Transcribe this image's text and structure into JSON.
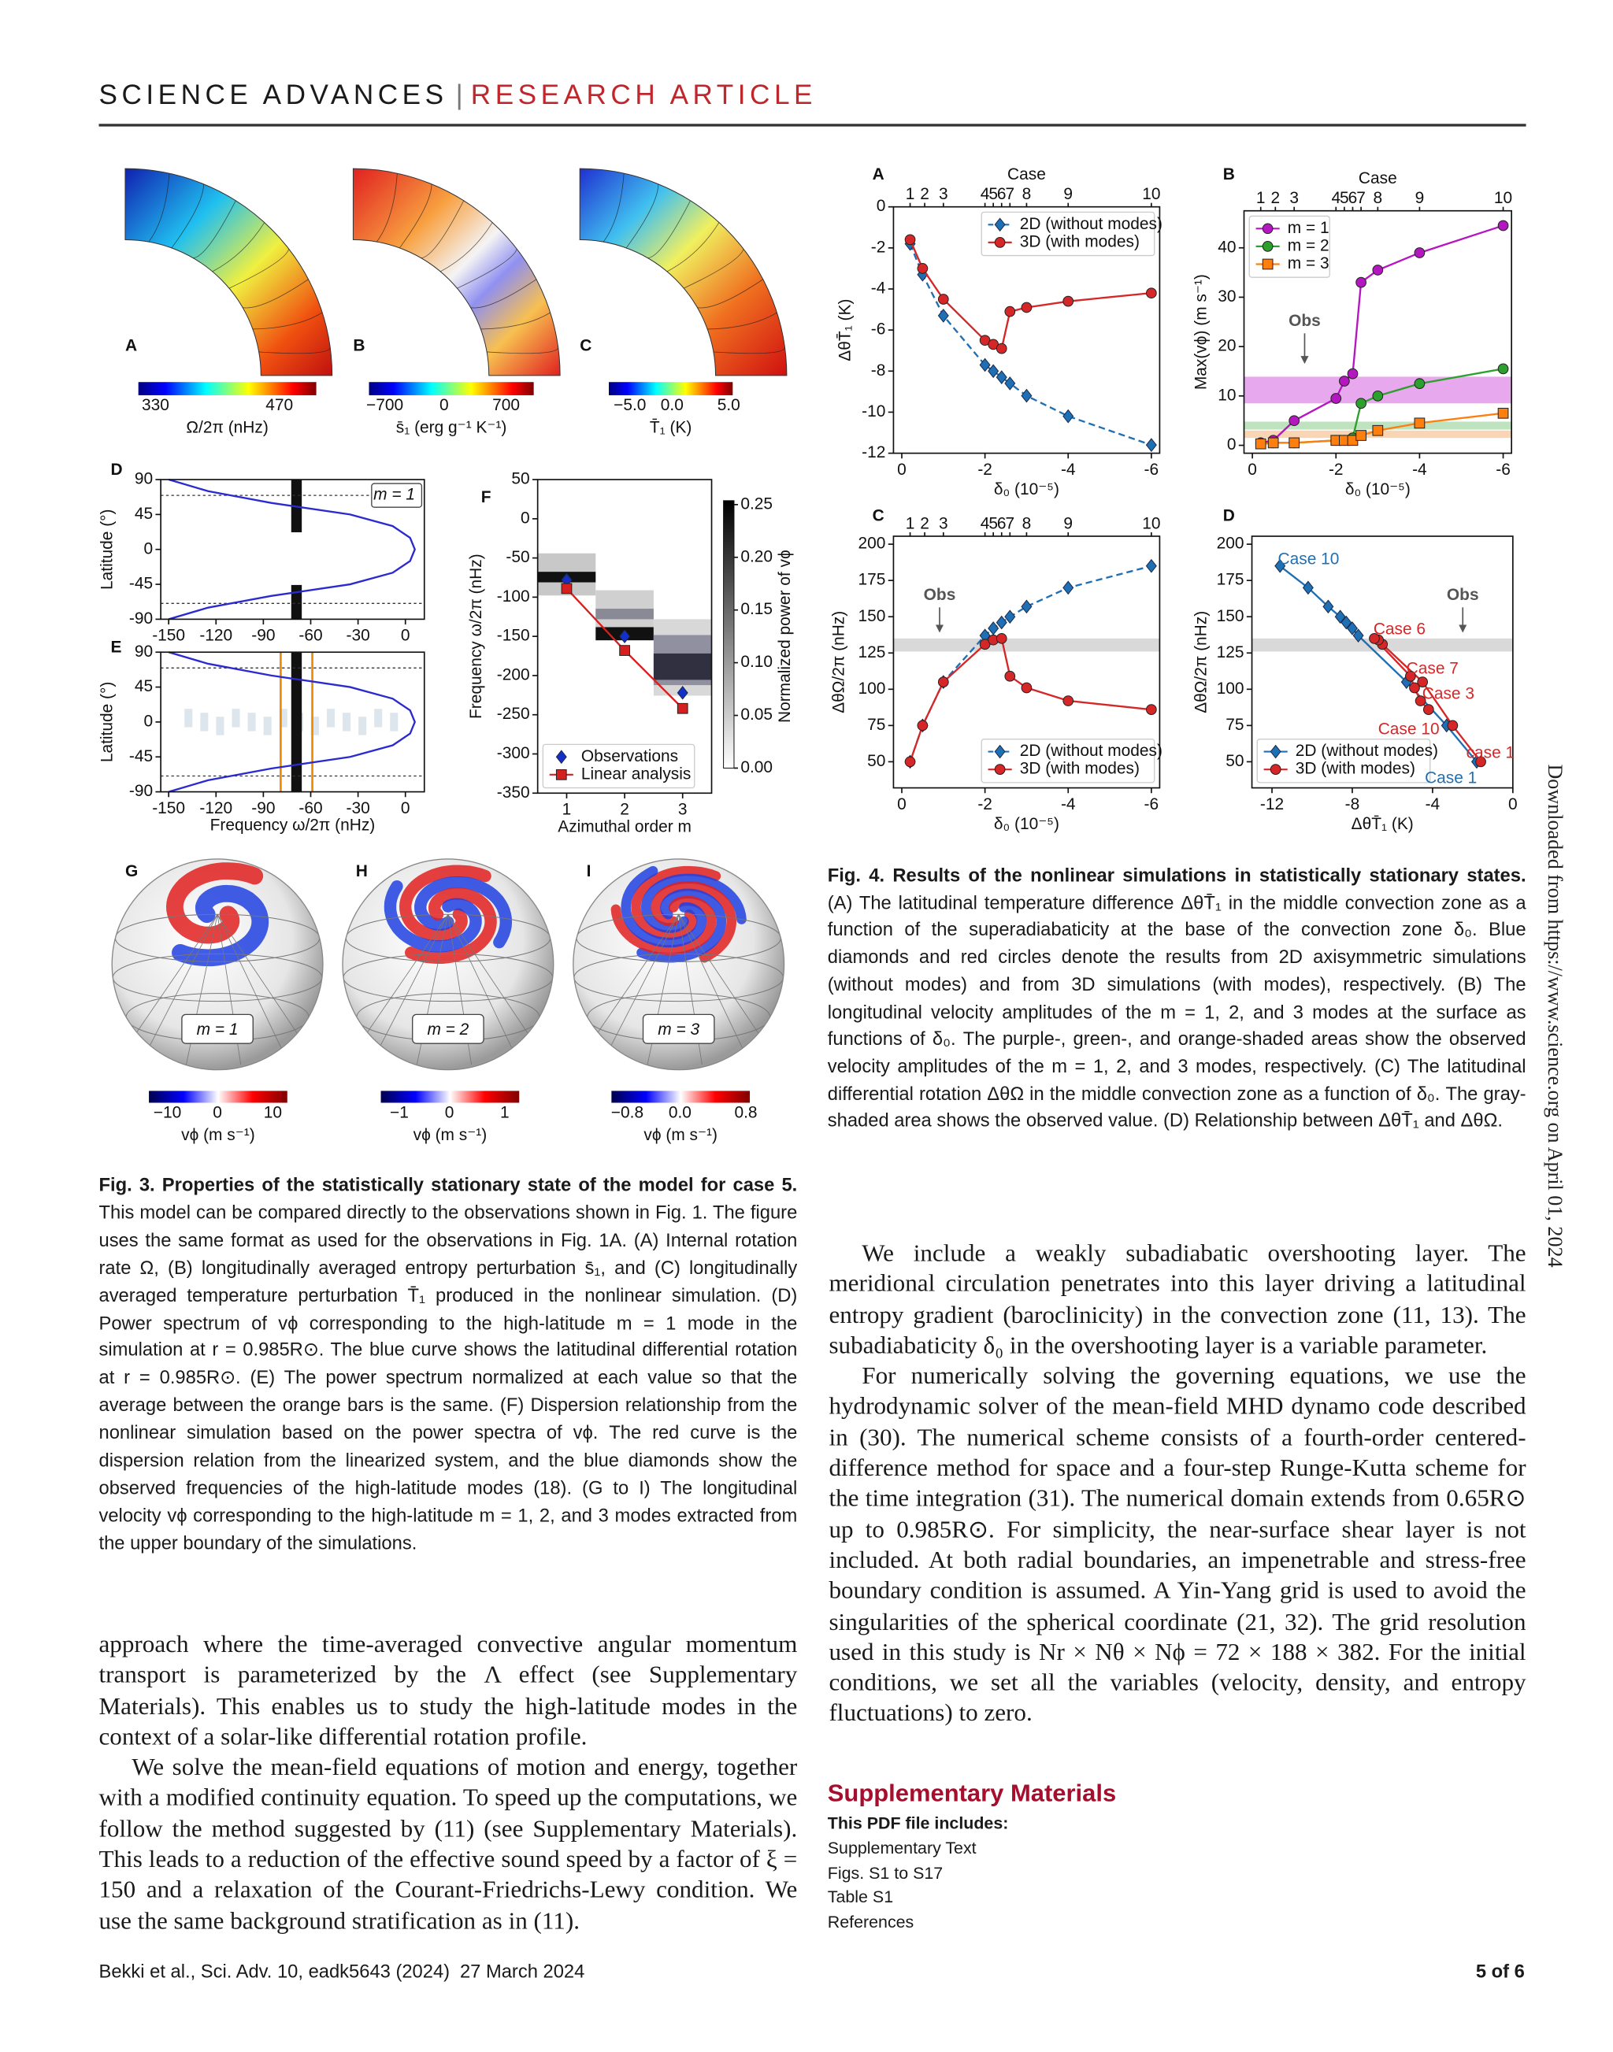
{
  "header": {
    "journal": "SCIENCE ADVANCES",
    "separator": "|",
    "section": "RESEARCH ARTICLE"
  },
  "figure3": {
    "meridional_panels": [
      "A",
      "B",
      "C"
    ],
    "meridional_colorbars": [
      {
        "ticks": [
          "330",
          "470"
        ],
        "label": "Ω/2π (nHz)"
      },
      {
        "ticks": [
          "−700",
          "0",
          "700"
        ],
        "label": "s̄₁ (erg g⁻¹ K⁻¹)"
      },
      {
        "ticks": [
          "−5.0",
          "0.0",
          "5.0"
        ],
        "label": "T̄₁ (K)"
      }
    ],
    "sphere_panels": [
      "G",
      "H",
      "I"
    ],
    "sphere_labels": [
      "m = 1",
      "m = 2",
      "m = 3"
    ],
    "sphere_colorbars": [
      {
        "ticks": [
          "−10",
          "0",
          "10"
        ],
        "label": "vϕ (m s⁻¹)"
      },
      {
        "ticks": [
          "−1",
          "0",
          "1"
        ],
        "label": "vϕ (m s⁻¹)"
      },
      {
        "ticks": [
          "−0.8",
          "0.0",
          "0.8"
        ],
        "label": "vϕ (m s⁻¹)"
      }
    ],
    "caption": {
      "title": "Fig. 3. Properties of the statistically stationary state of the model for case 5.",
      "text": " This model can be compared directly to the observations shown in Fig. 1. The figure uses the same format as used for the observations in Fig. 1A. (A) Internal rotation rate Ω, (B) longitudinally averaged entropy perturbation s̄₁, and (C) longitudinally averaged temperature perturbation T̄₁ produced in the nonlinear simulation. (D) Power spectrum of vϕ corresponding to the high-latitude m = 1 mode in the simulation at r = 0.985R⊙. The blue curve shows the latitudinal differential rotation at r = 0.985R⊙. (E) The power spectrum normalized at each value so that the average between the orange bars is the same. (F) Dispersion relationship from the nonlinear simulation based on the power spectra of vϕ. The red curve is the dispersion relation from the linearized system, and the blue diamonds show the observed frequencies of the high-latitude modes (18). (G to I) The longitudinal velocity vϕ corresponding to the high-latitude m = 1, 2, and 3 modes extracted from the upper boundary of the simulations."
    }
  },
  "chart_data": [
    {
      "panel": "D",
      "type": "line",
      "xlim": [
        -155,
        12
      ],
      "xticks": [
        -150,
        -120,
        -90,
        -60,
        -30,
        0
      ],
      "ylim": [
        -90,
        90
      ],
      "yticks": [
        90,
        45,
        0,
        -45,
        -90
      ],
      "ylabel": "Latitude (°)",
      "annotations": [
        "m = 1"
      ],
      "series": [
        {
          "color": "#2a2ad0",
          "marker": "none",
          "line_style": "solid",
          "x": [
            -150,
            -125,
            -85,
            -35,
            -8,
            3,
            6,
            3,
            -8,
            -35,
            -85,
            -125,
            -150
          ],
          "values": [
            -90,
            -75,
            -60,
            -45,
            -30,
            -15,
            0,
            15,
            30,
            45,
            60,
            75,
            90
          ]
        }
      ]
    },
    {
      "panel": "E",
      "type": "line",
      "xlim": [
        -155,
        12
      ],
      "xticks": [
        -150,
        -120,
        -90,
        -60,
        -30,
        0
      ],
      "xlabel": "Frequency  ω/2π (nHz)",
      "ylim": [
        -90,
        90
      ],
      "yticks": [
        90,
        45,
        0,
        -45,
        -90
      ],
      "ylabel": "Latitude (°)",
      "series": [
        {
          "color": "#2a2ad0",
          "marker": "none",
          "line_style": "solid",
          "x": [
            -150,
            -125,
            -85,
            -35,
            -8,
            3,
            6,
            3,
            -8,
            -35,
            -85,
            -125,
            -150
          ],
          "values": [
            -90,
            -75,
            -60,
            -45,
            -30,
            -15,
            0,
            15,
            30,
            45,
            60,
            75,
            90
          ]
        }
      ]
    },
    {
      "panel": "F",
      "type": "line",
      "x": [
        1,
        2,
        3
      ],
      "xlim": [
        0.5,
        3.5
      ],
      "xticks": [
        1,
        2,
        3
      ],
      "xlabel": "Azimuthal order m",
      "ylim": [
        -350,
        50
      ],
      "yticks": [
        50,
        0,
        -50,
        -100,
        -150,
        -200,
        -250,
        -300,
        -350
      ],
      "ylabel": "Frequency  ω/2π (nHz)",
      "legend": "lower left",
      "colorbar": {
        "label": "Normalized power of vϕ",
        "lim": [
          0,
          0.25
        ],
        "ticks": [
          {
            "value": 0,
            "label": "0.00"
          },
          {
            "value": 0.05,
            "label": "0.05"
          },
          {
            "value": 0.1,
            "label": "0.10"
          },
          {
            "value": 0.15,
            "label": "0.15"
          },
          {
            "value": 0.2,
            "label": "0.20"
          },
          {
            "value": 0.25,
            "label": "0.25"
          }
        ]
      },
      "series": [
        {
          "name": "Observations",
          "color": "#1530c8",
          "marker": "diamond",
          "line_style": "none",
          "values": [
            -78,
            -150,
            -222
          ]
        },
        {
          "name": "Linear analysis",
          "color": "#d62020",
          "marker": "square",
          "line_style": "solid",
          "values": [
            -89,
            -168,
            -242
          ]
        }
      ]
    },
    {
      "panel": "A",
      "type": "line",
      "top_label": "Case",
      "case_ticks": [
        {
          "value": -0.2,
          "label": "1"
        },
        {
          "value": -0.55,
          "label": "2"
        },
        {
          "value": -1,
          "label": "3"
        },
        {
          "value": -2,
          "label": "4"
        },
        {
          "value": -2.2,
          "label": "5"
        },
        {
          "value": -2.4,
          "label": "6"
        },
        {
          "value": -2.6,
          "label": "7"
        },
        {
          "value": -3,
          "label": "8"
        },
        {
          "value": -4,
          "label": "9"
        },
        {
          "value": -6,
          "label": "10"
        }
      ],
      "x": [
        -0.2,
        -0.5,
        -1,
        -2,
        -2.2,
        -2.4,
        -2.6,
        -3,
        -4,
        -6
      ],
      "xlim": [
        0.2,
        -6.2
      ],
      "xticks": [
        0,
        -2,
        -4,
        -6
      ],
      "xlabel": "δ₀ (10⁻⁵)",
      "ylim": [
        -12,
        0
      ],
      "yticks": [
        0,
        -2,
        -4,
        -6,
        -8,
        -10,
        -12
      ],
      "ylabel": "ΔθT̄₁ (K)",
      "legend": "upper right",
      "series": [
        {
          "name": "2D (without modes)",
          "color": "#1f6fb4",
          "marker": "diamond",
          "line_style": "dashed",
          "values": [
            -1.8,
            -3.3,
            -5.3,
            -7.7,
            -8.0,
            -8.3,
            -8.6,
            -9.2,
            -10.2,
            -11.6
          ]
        },
        {
          "name": "3D (with modes)",
          "color": "#d62728",
          "marker": "circle",
          "line_style": "solid",
          "values": [
            -1.6,
            -3.0,
            -4.5,
            -6.5,
            -6.7,
            -6.9,
            -5.1,
            -4.9,
            -4.6,
            -4.2
          ]
        }
      ]
    },
    {
      "panel": "B",
      "type": "line",
      "top_label": "Case",
      "case_ticks": [
        {
          "value": -0.2,
          "label": "1"
        },
        {
          "value": -0.55,
          "label": "2"
        },
        {
          "value": -1,
          "label": "3"
        },
        {
          "value": -2,
          "label": "4"
        },
        {
          "value": -2.2,
          "label": "5"
        },
        {
          "value": -2.4,
          "label": "6"
        },
        {
          "value": -2.6,
          "label": "7"
        },
        {
          "value": -3,
          "label": "8"
        },
        {
          "value": -4,
          "label": "9"
        },
        {
          "value": -6,
          "label": "10"
        }
      ],
      "x": [
        -0.2,
        -0.5,
        -1,
        -2,
        -2.2,
        -2.4,
        -2.6,
        -3,
        -4,
        -6
      ],
      "xlim": [
        0.2,
        -6.2
      ],
      "xticks": [
        0,
        -2,
        -4,
        -6
      ],
      "xlabel": "δ₀ (10⁻⁵)",
      "ylim": [
        -1.6,
        47.5
      ],
      "yticks": [
        0,
        10,
        20,
        30,
        40
      ],
      "ylabel": "Max(vϕ) (m s⁻¹)",
      "legend": "upper left",
      "annotations": [
        "Obs"
      ],
      "bands": [
        {
          "color": "#e8a8ee",
          "range": [
            8.5,
            13.9
          ]
        },
        {
          "color": "#bfe3bf",
          "range": [
            3.2,
            4.8
          ]
        },
        {
          "color": "#fad5b3",
          "range": [
            1.5,
            3.0
          ]
        }
      ],
      "series": [
        {
          "name": "m = 1",
          "color": "#b416c0",
          "marker": "circle",
          "line_style": "solid",
          "values": [
            0.5,
            1,
            5,
            9.5,
            13,
            14.5,
            33,
            35.5,
            39,
            44.5
          ]
        },
        {
          "name": "m = 2",
          "color": "#2ca02c",
          "marker": "circle",
          "line_style": "solid",
          "values": [
            0.3,
            0.5,
            0.5,
            1,
            1,
            1.5,
            8.5,
            10,
            12.5,
            15.5
          ]
        },
        {
          "name": "m = 3",
          "color": "#ff7f0e",
          "marker": "square",
          "line_style": "solid",
          "values": [
            0.3,
            0.5,
            0.5,
            1,
            1,
            1,
            2,
            3,
            4.5,
            6.5
          ]
        }
      ]
    },
    {
      "panel": "C",
      "type": "line",
      "case_ticks": [
        {
          "value": -0.2,
          "label": "1"
        },
        {
          "value": -0.55,
          "label": "2"
        },
        {
          "value": -1,
          "label": "3"
        },
        {
          "value": -2,
          "label": "4"
        },
        {
          "value": -2.2,
          "label": "5"
        },
        {
          "value": -2.4,
          "label": "6"
        },
        {
          "value": -2.6,
          "label": "7"
        },
        {
          "value": -3,
          "label": "8"
        },
        {
          "value": -4,
          "label": "9"
        },
        {
          "value": -6,
          "label": "10"
        }
      ],
      "x": [
        -0.2,
        -0.5,
        -1,
        -2,
        -2.2,
        -2.4,
        -2.6,
        -3,
        -4,
        -6
      ],
      "xlim": [
        0.2,
        -6.2
      ],
      "xticks": [
        0,
        -2,
        -4,
        -6
      ],
      "xlabel": "δ₀ (10⁻⁵)",
      "ylim": [
        32,
        205.5
      ],
      "yticks": [
        50,
        75,
        100,
        125,
        150,
        175,
        200
      ],
      "ylabel": "ΔθΩ/2π (nHz)",
      "legend": "lower right",
      "annotations": [
        "Obs"
      ],
      "bands": [
        {
          "color": "#d9d9d9",
          "range": [
            126,
            135
          ]
        }
      ],
      "series": [
        {
          "name": "2D (without modes)",
          "color": "#1f6fb4",
          "marker": "diamond",
          "line_style": "dashed",
          "values": [
            50,
            75,
            105,
            137,
            142,
            146,
            150,
            157,
            170,
            185
          ]
        },
        {
          "name": "3D (with modes)",
          "color": "#d62728",
          "marker": "circle",
          "line_style": "solid",
          "values": [
            50,
            75,
            105,
            131,
            134,
            135,
            109,
            101,
            92,
            86
          ]
        }
      ]
    },
    {
      "panel": "D",
      "type": "line",
      "xlim": [
        -13,
        0
      ],
      "xticks": [
        -12,
        -8,
        -4,
        0
      ],
      "xlabel": "ΔθT̄₁ (K)",
      "ylim": [
        32,
        205.5
      ],
      "yticks": [
        50,
        75,
        100,
        125,
        150,
        175,
        200
      ],
      "ylabel": "ΔθΩ/2π (nHz)",
      "legend": "lower left",
      "annotations": [
        "Case 10",
        "Case 6",
        "Case 7",
        "Case 3",
        "Case 10",
        "case 1",
        "Case 1",
        "Obs"
      ],
      "bands": [
        {
          "color": "#d9d9d9",
          "range": [
            126,
            135
          ]
        }
      ],
      "series": [
        {
          "name": "2D (without modes)",
          "color": "#1f6fb4",
          "marker": "diamond",
          "line_style": "solid",
          "x": [
            -1.8,
            -3.3,
            -5.3,
            -7.7,
            -8.0,
            -8.3,
            -8.6,
            -9.2,
            -10.2,
            -11.6
          ],
          "values": [
            50,
            75,
            105,
            137,
            142,
            146,
            150,
            157,
            170,
            185
          ]
        },
        {
          "name": "3D (with modes)",
          "color": "#d62728",
          "marker": "circle",
          "line_style": "solid",
          "x": [
            -1.6,
            -3.0,
            -4.5,
            -6.5,
            -6.7,
            -6.9,
            -5.1,
            -4.9,
            -4.6,
            -4.2
          ],
          "values": [
            50,
            75,
            105,
            131,
            134,
            135,
            109,
            101,
            92,
            86
          ]
        }
      ]
    }
  ],
  "figure4": {
    "caption": {
      "title": "Fig. 4. Results of the nonlinear simulations in statistically stationary states.",
      "text": " (A) The latitudinal temperature difference ΔθT̄₁ in the middle convection zone as a function of the superadiabaticity at the base of the convection zone δ₀. Blue diamonds and red circles denote the results from 2D axisymmetric simulations (without modes) and from 3D simulations (with modes), respectively. (B) The longitudinal velocity amplitudes of the m = 1, 2, and 3 modes at the surface as functions of δ₀. The purple-, green-, and orange-shaded areas show the observed velocity amplitudes of the m = 1, 2, and 3 modes, respectively. (C) The latitudinal differential rotation ΔθΩ in the middle convection zone as a function of δ₀. The gray-shaded area shows the observed value. (D) Relationship between ΔθT̄₁ and ΔθΩ."
    }
  },
  "body": {
    "left": [
      "approach where the time-averaged convective angular momentum transport is parameterized by the Λ effect (see Supplementary Materials). This enables us to study the high-latitude modes in the context of a solar-like differential rotation profile.",
      "We solve the mean-field equations of motion and energy, together with a modified continuity equation. To speed up the computations, we follow the method suggested by (11) (see Supplementary Materials). This leads to a reduction of the effective sound speed by a factor of ξ = 150 and a relaxation of the Courant-Friedrichs-Lewy condition. We use the same background stratification as in (11)."
    ],
    "right": [
      "We include a weakly subadiabatic overshooting layer. The meridional circulation penetrates into this layer driving a latitudinal entropy gradient (baroclinicity) in the convection zone (11, 13). The subadiabaticity δ₀ in the overshooting layer is a variable parameter.",
      "For numerically solving the governing equations, we use the hydrodynamic solver of the mean-field MHD dynamo code described in (30). The numerical scheme consists of a fourth-order centered-difference method for space and a four-step Runge-Kutta scheme for the time integration (31). The numerical domain extends from 0.65R⊙ up to 0.985R⊙. For simplicity, the near-surface shear layer is not included. At both radial boundaries, an impenetrable and stress-free boundary condition is assumed. A Yin-Yang grid is used to avoid the singularities of the spherical coordinate (21, 32). The grid resolution used in this study is Nr × Nθ × Nϕ = 72 × 188 × 382. For the initial conditions, we set all the variables (velocity, density, and entropy fluctuations) to zero."
    ]
  },
  "supplementary": {
    "title": "Supplementary Materials",
    "subtitle": "This PDF file includes:",
    "items": [
      "Supplementary Text",
      "Figs. S1 to S17",
      "Table S1",
      "References"
    ]
  },
  "footer": {
    "citation": "Bekki et al., Sci. Adv. 10, eadk5643 (2024)",
    "date": "27 March 2024",
    "page": "5 of 6"
  },
  "sidebar": "Downloaded from https://www.science.org on April 01, 2024"
}
